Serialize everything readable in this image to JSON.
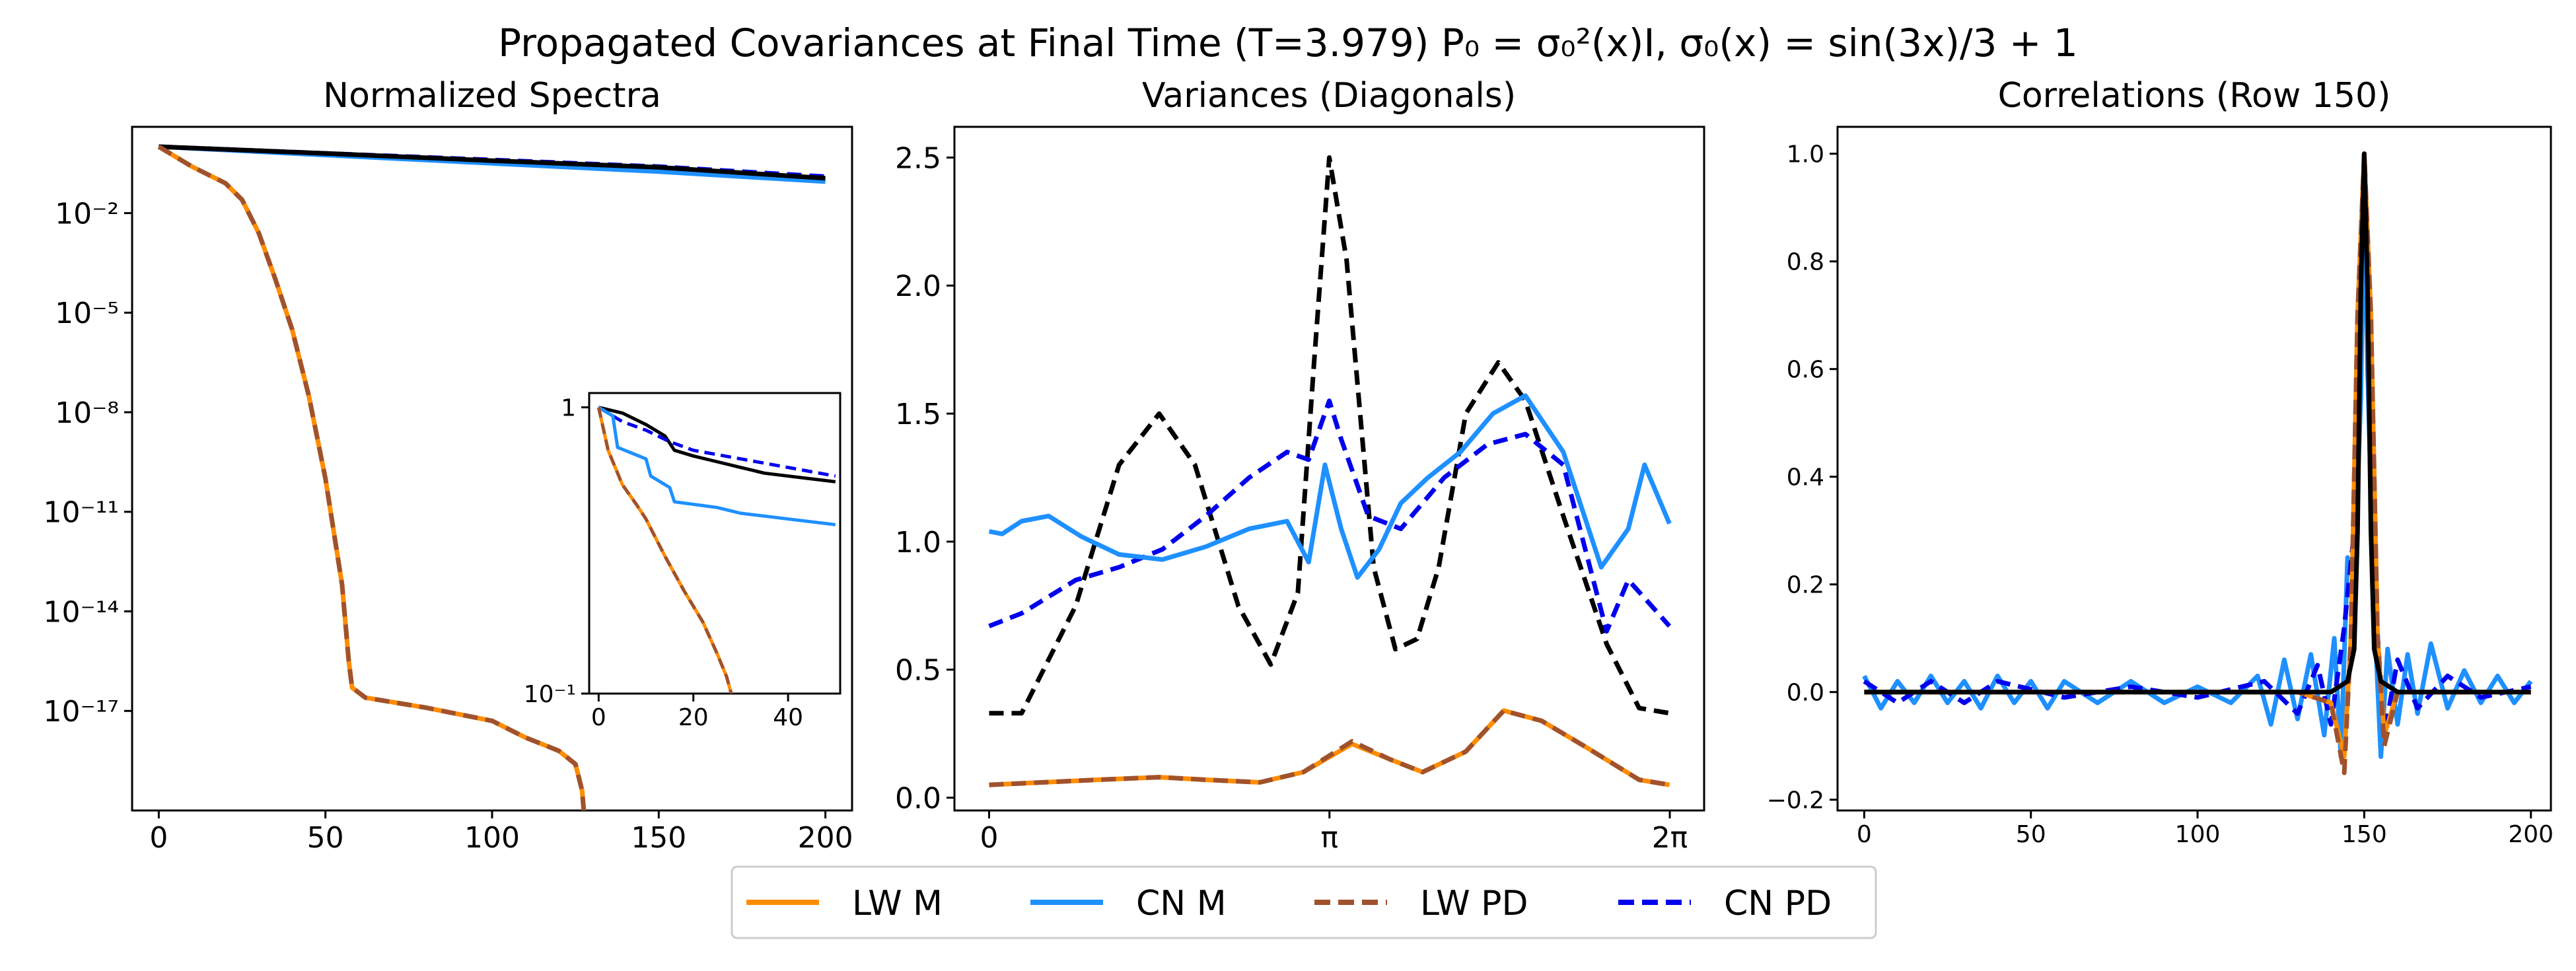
{
  "figure": {
    "title": "Propagated Covariances at Final Time (T=3.979) P₀ = σ₀²(x)I, σ₀(x) = sin(3x)/3 + 1"
  },
  "legend": {
    "location": "lower-center",
    "entries": [
      {
        "label": "LW M",
        "color": "#ff8c00",
        "style": "solid"
      },
      {
        "label": "CN M",
        "color": "#1e90ff",
        "style": "solid"
      },
      {
        "label": "LW PD",
        "color": "#a0522d",
        "style": "dashed"
      },
      {
        "label": "CN PD",
        "color": "#0000ee",
        "style": "dashed"
      }
    ]
  },
  "colors": {
    "lw_m": "#ff8c00",
    "cn_m": "#1e90ff",
    "lw_pd": "#a0522d",
    "cn_pd": "#0000ee",
    "true": "#000000"
  },
  "chart_data": [
    {
      "type": "line",
      "title": "Normalized Spectra",
      "yscale": "log",
      "xlim": [
        -8,
        208
      ],
      "ylim_exp": [
        -20,
        0.6
      ],
      "xticks": [
        0,
        50,
        100,
        150,
        200
      ],
      "xtick_labels": [
        "0",
        "50",
        "100",
        "150",
        "200"
      ],
      "yticks_exp": [
        -2,
        -5,
        -8,
        -11,
        -14,
        -17
      ],
      "ytick_labels": [
        "10⁻²",
        "10⁻⁵",
        "10⁻⁸",
        "10⁻¹¹",
        "10⁻¹⁴",
        "10⁻¹⁷"
      ],
      "series": [
        {
          "name": "CN M",
          "color": "#1e90ff",
          "dash": false,
          "x": [
            0,
            50,
            100,
            150,
            200
          ],
          "log10_y": [
            0,
            -0.25,
            -0.5,
            -0.75,
            -1.05
          ]
        },
        {
          "name": "CN PD",
          "color": "#0000ee",
          "dash": true,
          "x": [
            0,
            50,
            100,
            150,
            200
          ],
          "log10_y": [
            0,
            -0.2,
            -0.4,
            -0.6,
            -0.9
          ]
        },
        {
          "name": "True",
          "color": "#000000",
          "dash": false,
          "x": [
            0,
            50,
            100,
            150,
            200
          ],
          "log10_y": [
            0,
            -0.2,
            -0.42,
            -0.62,
            -0.95
          ]
        },
        {
          "name": "LW M",
          "color": "#ff8c00",
          "dash": false,
          "x": [
            0,
            10,
            20,
            25,
            30,
            35,
            40,
            45,
            50,
            55,
            57,
            58,
            62,
            80,
            100,
            110,
            120,
            125,
            127,
            127.5
          ],
          "log10_y": [
            0,
            -0.6,
            -1.1,
            -1.6,
            -2.6,
            -4.0,
            -5.5,
            -7.5,
            -10.0,
            -13.2,
            -15.5,
            -16.3,
            -16.6,
            -16.9,
            -17.3,
            -17.8,
            -18.2,
            -18.6,
            -19.4,
            -20.0
          ]
        },
        {
          "name": "LW PD",
          "color": "#a0522d",
          "dash": true,
          "x": [
            0,
            10,
            20,
            25,
            30,
            35,
            40,
            45,
            50,
            55,
            57,
            58,
            62,
            80,
            100,
            110,
            120,
            125,
            127,
            127.5
          ],
          "log10_y": [
            0,
            -0.6,
            -1.1,
            -1.6,
            -2.6,
            -4.0,
            -5.5,
            -7.5,
            -10.0,
            -13.2,
            -15.5,
            -16.3,
            -16.6,
            -16.9,
            -17.3,
            -17.8,
            -18.2,
            -18.6,
            -19.4,
            -20.0
          ]
        }
      ],
      "inset": {
        "xlim": [
          -2,
          51
        ],
        "ylim_exp": [
          -1,
          0.05
        ],
        "xticks": [
          0,
          20,
          40
        ],
        "xtick_labels": [
          "0",
          "20",
          "40"
        ],
        "ytick_labels": [
          "1",
          "10⁻¹"
        ],
        "series": [
          {
            "name": "True",
            "color": "#000000",
            "dash": false,
            "x": [
              0,
              5,
              10,
              14,
              16,
              20,
              25,
              30,
              35,
              40,
              45,
              50
            ],
            "log10_y": [
              0,
              -0.02,
              -0.06,
              -0.1,
              -0.15,
              -0.17,
              -0.19,
              -0.21,
              -0.23,
              -0.24,
              -0.25,
              -0.26
            ]
          },
          {
            "name": "CN PD",
            "color": "#0000ee",
            "dash": true,
            "x": [
              0,
              5,
              10,
              15,
              20,
              30,
              40,
              50
            ],
            "log10_y": [
              0,
              -0.05,
              -0.08,
              -0.12,
              -0.15,
              -0.18,
              -0.21,
              -0.24
            ]
          },
          {
            "name": "CN M",
            "color": "#1e90ff",
            "dash": false,
            "x": [
              0,
              3,
              4,
              10,
              11,
              15,
              16,
              25,
              30,
              35,
              40,
              50
            ],
            "log10_y": [
              0,
              -0.03,
              -0.14,
              -0.18,
              -0.24,
              -0.28,
              -0.33,
              -0.35,
              -0.37,
              -0.38,
              -0.39,
              -0.41
            ]
          },
          {
            "name": "LW M",
            "color": "#ff8c00",
            "dash": false,
            "x": [
              0,
              2,
              5,
              8,
              10,
              14,
              18,
              22,
              25,
              27,
              28
            ],
            "log10_y": [
              0,
              -0.15,
              -0.27,
              -0.34,
              -0.39,
              -0.52,
              -0.64,
              -0.75,
              -0.86,
              -0.94,
              -1.0
            ]
          },
          {
            "name": "LW PD",
            "color": "#a0522d",
            "dash": true,
            "x": [
              0,
              2,
              5,
              8,
              10,
              14,
              18,
              22,
              25,
              27,
              28
            ],
            "log10_y": [
              0,
              -0.15,
              -0.27,
              -0.34,
              -0.39,
              -0.52,
              -0.64,
              -0.75,
              -0.86,
              -0.94,
              -1.0
            ]
          }
        ]
      }
    },
    {
      "type": "line",
      "title": "Variances (Diagonals)",
      "xlim": [
        -0.32,
        6.6
      ],
      "ylim": [
        -0.05,
        2.62
      ],
      "xticks": [
        0,
        3.1416,
        6.2832
      ],
      "xtick_labels": [
        "0",
        "π",
        "2π"
      ],
      "yticks": [
        0,
        0.5,
        1,
        1.5,
        2,
        2.5
      ],
      "ytick_labels": [
        "0.0",
        "0.5",
        "1.0",
        "1.5",
        "2.0",
        "2.5"
      ],
      "series": [
        {
          "name": "True",
          "color": "#000000",
          "dash": true,
          "x": [
            0,
            0.3,
            0.8,
            1.2,
            1.57,
            1.9,
            2.3,
            2.6,
            2.85,
            3.0,
            3.14,
            3.3,
            3.55,
            3.75,
            3.95,
            4.15,
            4.4,
            4.7,
            4.95,
            5.3,
            5.7,
            6.0,
            6.28
          ],
          "y": [
            0.33,
            0.33,
            0.75,
            1.3,
            1.5,
            1.3,
            0.75,
            0.52,
            0.8,
            1.7,
            2.5,
            2.1,
            0.9,
            0.58,
            0.62,
            0.9,
            1.5,
            1.7,
            1.55,
            1.1,
            0.6,
            0.35,
            0.33
          ]
        },
        {
          "name": "CN PD",
          "color": "#0000ee",
          "dash": true,
          "x": [
            0,
            0.3,
            0.8,
            1.2,
            1.6,
            2.0,
            2.4,
            2.75,
            2.95,
            3.14,
            3.25,
            3.5,
            3.8,
            4.2,
            4.6,
            4.95,
            5.3,
            5.7,
            5.9,
            6.05,
            6.28
          ],
          "y": [
            0.67,
            0.72,
            0.85,
            0.9,
            0.97,
            1.1,
            1.25,
            1.35,
            1.32,
            1.55,
            1.4,
            1.1,
            1.05,
            1.25,
            1.38,
            1.42,
            1.3,
            0.65,
            0.85,
            0.78,
            0.67
          ]
        },
        {
          "name": "CN M",
          "color": "#1e90ff",
          "dash": false,
          "x": [
            0,
            0.12,
            0.3,
            0.55,
            0.85,
            1.2,
            1.6,
            2.0,
            2.4,
            2.75,
            2.95,
            3.1,
            3.25,
            3.4,
            3.6,
            3.8,
            4.05,
            4.35,
            4.65,
            4.95,
            5.3,
            5.65,
            5.9,
            6.05,
            6.28
          ],
          "y": [
            1.04,
            1.03,
            1.08,
            1.1,
            1.02,
            0.95,
            0.93,
            0.98,
            1.05,
            1.08,
            0.92,
            1.3,
            1.05,
            0.86,
            0.97,
            1.15,
            1.25,
            1.35,
            1.5,
            1.57,
            1.35,
            0.9,
            1.05,
            1.3,
            1.07
          ]
        },
        {
          "name": "LW M",
          "color": "#ff8c00",
          "dash": false,
          "x": [
            0,
            0.5,
            1.0,
            1.57,
            2.0,
            2.5,
            2.9,
            3.35,
            3.7,
            4.0,
            4.4,
            4.75,
            5.1,
            5.5,
            6.0,
            6.28
          ],
          "y": [
            0.05,
            0.06,
            0.07,
            0.08,
            0.07,
            0.06,
            0.1,
            0.21,
            0.15,
            0.1,
            0.18,
            0.34,
            0.3,
            0.2,
            0.07,
            0.05
          ]
        },
        {
          "name": "LW PD",
          "color": "#a0522d",
          "dash": true,
          "x": [
            0,
            0.5,
            1.0,
            1.57,
            2.0,
            2.5,
            2.9,
            3.35,
            3.7,
            4.0,
            4.4,
            4.75,
            5.1,
            5.5,
            6.0,
            6.28
          ],
          "y": [
            0.05,
            0.06,
            0.07,
            0.08,
            0.07,
            0.06,
            0.1,
            0.22,
            0.15,
            0.1,
            0.18,
            0.34,
            0.3,
            0.2,
            0.07,
            0.05
          ]
        }
      ]
    },
    {
      "type": "line",
      "title": "Correlations (Row 150)",
      "xlim": [
        -8,
        206
      ],
      "ylim": [
        -0.22,
        1.05
      ],
      "xticks": [
        0,
        50,
        100,
        150,
        200
      ],
      "xtick_labels": [
        "0",
        "50",
        "100",
        "150",
        "200"
      ],
      "yticks": [
        -0.2,
        0,
        0.2,
        0.4,
        0.6,
        0.8,
        1.0
      ],
      "ytick_labels": [
        "−0.2",
        "0.0",
        "0.2",
        "0.4",
        "0.6",
        "0.8",
        "1.0"
      ],
      "series": [
        {
          "name": "CN M",
          "color": "#1e90ff",
          "dash": false,
          "x": [
            0,
            5,
            10,
            15,
            20,
            25,
            30,
            35,
            40,
            45,
            50,
            55,
            60,
            70,
            80,
            90,
            100,
            110,
            118,
            122,
            126,
            130,
            134,
            138,
            141,
            143,
            145,
            147,
            149,
            150,
            151,
            153,
            155,
            157,
            160,
            163,
            166,
            170,
            175,
            180,
            185,
            190,
            195,
            200
          ],
          "y": [
            0.03,
            -0.03,
            0.02,
            -0.02,
            0.03,
            -0.02,
            0.02,
            -0.03,
            0.03,
            -0.02,
            0.02,
            -0.03,
            0.02,
            -0.02,
            0.02,
            -0.02,
            0.01,
            -0.02,
            0.03,
            -0.06,
            0.06,
            -0.05,
            0.07,
            -0.08,
            0.1,
            -0.12,
            0.25,
            0.2,
            0.55,
            0.95,
            0.6,
            0.15,
            -0.12,
            0.08,
            -0.06,
            0.07,
            -0.04,
            0.09,
            -0.03,
            0.04,
            -0.02,
            0.03,
            -0.02,
            0.02
          ]
        },
        {
          "name": "CN PD",
          "color": "#0000ee",
          "dash": true,
          "x": [
            0,
            10,
            20,
            30,
            40,
            60,
            80,
            100,
            120,
            130,
            136,
            140,
            144,
            147,
            149,
            150,
            151,
            153,
            156,
            160,
            166,
            175,
            185,
            200
          ],
          "y": [
            0.02,
            -0.02,
            0.02,
            -0.02,
            0.02,
            -0.01,
            0.01,
            -0.01,
            0.02,
            -0.04,
            0.05,
            -0.06,
            0.12,
            0.3,
            0.8,
            1.0,
            0.75,
            0.2,
            -0.08,
            0.06,
            -0.03,
            0.03,
            -0.01,
            0.01
          ]
        },
        {
          "name": "LW M",
          "color": "#ff8c00",
          "dash": false,
          "x": [
            0,
            130,
            140,
            144,
            146,
            148,
            150,
            152,
            154,
            156,
            160,
            200
          ],
          "y": [
            0,
            0,
            -0.02,
            -0.12,
            0.1,
            0.7,
            1.0,
            0.7,
            0.1,
            -0.08,
            0,
            0
          ]
        },
        {
          "name": "LW PD",
          "color": "#a0522d",
          "dash": true,
          "x": [
            0,
            130,
            140,
            144,
            146,
            148,
            150,
            152,
            154,
            156,
            160,
            200
          ],
          "y": [
            0,
            0,
            -0.02,
            -0.15,
            0.1,
            0.7,
            1.0,
            0.7,
            0.1,
            -0.1,
            0,
            0
          ]
        },
        {
          "name": "True",
          "color": "#000000",
          "dash": false,
          "x": [
            0,
            140,
            145,
            147,
            148,
            149,
            150,
            151,
            152,
            153,
            155,
            160,
            200
          ],
          "y": [
            0,
            0,
            0.02,
            0.08,
            0.3,
            0.75,
            1.0,
            0.75,
            0.3,
            0.08,
            0.02,
            0,
            0
          ]
        }
      ]
    }
  ]
}
